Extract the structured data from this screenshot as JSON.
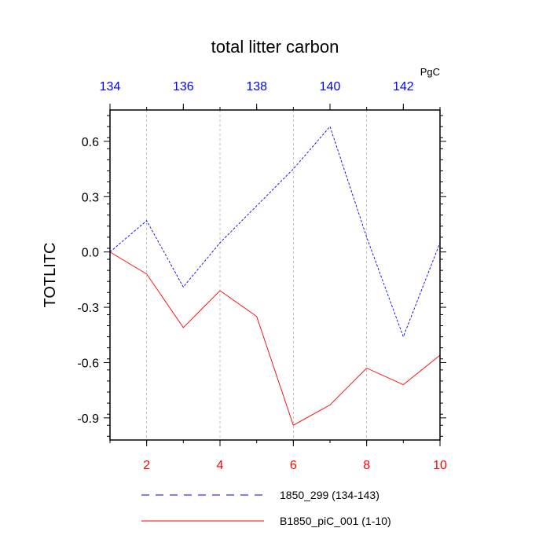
{
  "chart_data": {
    "type": "line",
    "title": "total litter carbon",
    "ylabel": "TOTLITC",
    "units": "PgC",
    "ylim": [
      -1.02,
      0.77
    ],
    "yticks": [
      0.6,
      0.3,
      0.0,
      -0.3,
      -0.6,
      -0.9
    ],
    "ytick_labels": [
      "0.6",
      "0.3",
      "0.0",
      "-0.3",
      "-0.6",
      "-0.9"
    ],
    "bottom_axis": {
      "xlim": [
        1,
        10
      ],
      "ticks": [
        2,
        4,
        6,
        8,
        10
      ],
      "tick_labels": [
        "2",
        "4",
        "6",
        "8",
        "10"
      ],
      "color": "#ff0000"
    },
    "top_axis": {
      "xlim": [
        134,
        143
      ],
      "ticks": [
        134,
        136,
        138,
        140,
        142
      ],
      "tick_labels": [
        "134",
        "136",
        "138",
        "140",
        "142"
      ],
      "color": "#0000ff"
    },
    "vertical_gridlines": [
      2,
      4,
      6,
      8
    ],
    "series": [
      {
        "name": "1850_299 (134-143)",
        "color": "#0000ff",
        "dash": "dashed",
        "axis": "top",
        "x": [
          134,
          135,
          136,
          137,
          138,
          139,
          140,
          141,
          142,
          143
        ],
        "y": [
          0.0,
          0.17,
          -0.19,
          0.05,
          0.25,
          0.45,
          0.68,
          0.08,
          -0.46,
          0.05
        ]
      },
      {
        "name": "B1850_piC_001 (1-10)",
        "color": "#ff0000",
        "dash": "solid",
        "axis": "bottom",
        "x": [
          1,
          2,
          3,
          4,
          5,
          6,
          7,
          8,
          9,
          10
        ],
        "y": [
          0.0,
          -0.12,
          -0.41,
          -0.21,
          -0.35,
          -0.94,
          -0.83,
          -0.63,
          -0.72,
          -0.56
        ]
      }
    ]
  }
}
